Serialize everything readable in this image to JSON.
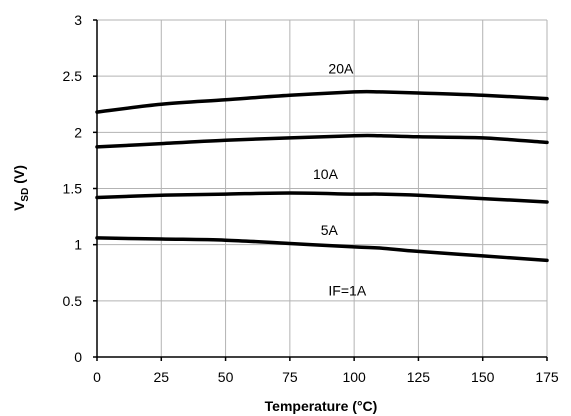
{
  "chart_data": {
    "type": "line",
    "title": "",
    "xlabel": "Temperature (°C)",
    "ylabel_main": "V",
    "ylabel_sub": "SD",
    "ylabel_unit": " (V)",
    "xlim": [
      0,
      175
    ],
    "ylim": [
      0,
      3
    ],
    "xticks": [
      0,
      25,
      50,
      75,
      100,
      125,
      150,
      175
    ],
    "yticks": [
      0,
      0.5,
      1,
      1.5,
      2,
      2.5,
      3
    ],
    "xtick_labels": [
      "0",
      "25",
      "50",
      "75",
      "100",
      "125",
      "150",
      "175"
    ],
    "ytick_labels": [
      "0",
      "0.5",
      "1",
      "1.5",
      "2",
      "2.5",
      "3"
    ],
    "grid": true,
    "x": [
      0,
      25,
      50,
      75,
      100,
      110,
      125,
      150,
      175
    ],
    "series": [
      {
        "name": "20A",
        "label_at": [
          90,
          2.57
        ],
        "values": [
          2.18,
          2.25,
          2.29,
          2.33,
          2.36,
          2.36,
          2.35,
          2.33,
          2.3
        ]
      },
      {
        "name": "10A",
        "label_at": [
          84,
          1.63
        ],
        "values": [
          1.87,
          1.9,
          1.93,
          1.95,
          1.97,
          1.97,
          1.96,
          1.95,
          1.91
        ]
      },
      {
        "name": "5A",
        "label_at": [
          87,
          1.13
        ],
        "values": [
          1.42,
          1.44,
          1.45,
          1.46,
          1.45,
          1.45,
          1.44,
          1.41,
          1.38
        ]
      },
      {
        "name": "IF=1A",
        "label_at": [
          90,
          0.59
        ],
        "values": [
          1.06,
          1.05,
          1.04,
          1.01,
          0.98,
          0.97,
          0.94,
          0.9,
          0.86
        ]
      }
    ]
  }
}
